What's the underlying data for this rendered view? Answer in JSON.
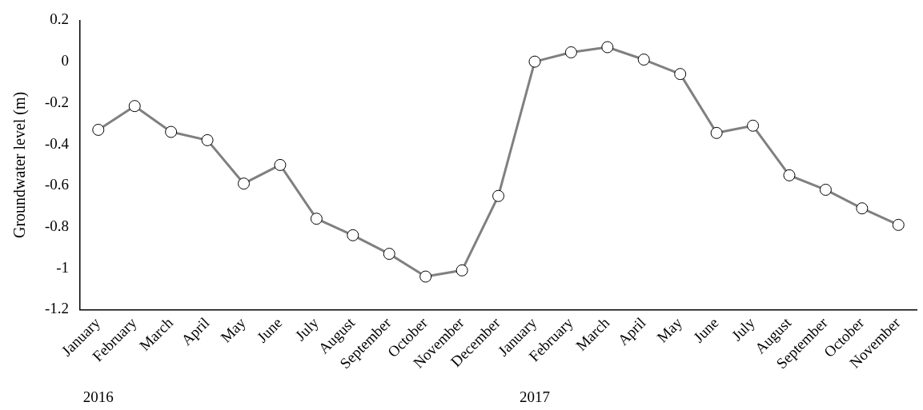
{
  "chart_data": {
    "type": "line",
    "ylabel": "Groundwater level (m)",
    "categories": [
      "January",
      "February",
      "March",
      "April",
      "May",
      "June",
      "July",
      "August",
      "September",
      "October",
      "November",
      "December",
      "January",
      "February",
      "March",
      "April",
      "May",
      "June",
      "July",
      "August",
      "September",
      "October",
      "November"
    ],
    "series": [
      {
        "color": "#808080",
        "values": [
          -0.33,
          -0.215,
          -0.34,
          -0.38,
          -0.59,
          -0.5,
          -0.76,
          -0.84,
          -0.93,
          -1.04,
          -1.01,
          -0.65,
          0.0,
          0.045,
          0.07,
          0.01,
          -0.06,
          -0.345,
          -0.31,
          -0.55,
          -0.62,
          -0.71,
          -0.79
        ]
      }
    ],
    "ylim": [
      -1.2,
      0.2
    ],
    "yticks": [
      -1.2,
      -1,
      -0.8,
      -0.6,
      -0.4,
      -0.2,
      0,
      0.2
    ],
    "grid": false,
    "legend": false,
    "marker": "circle",
    "line_style": "solid",
    "annotations": [
      "2016",
      "2017"
    ]
  }
}
